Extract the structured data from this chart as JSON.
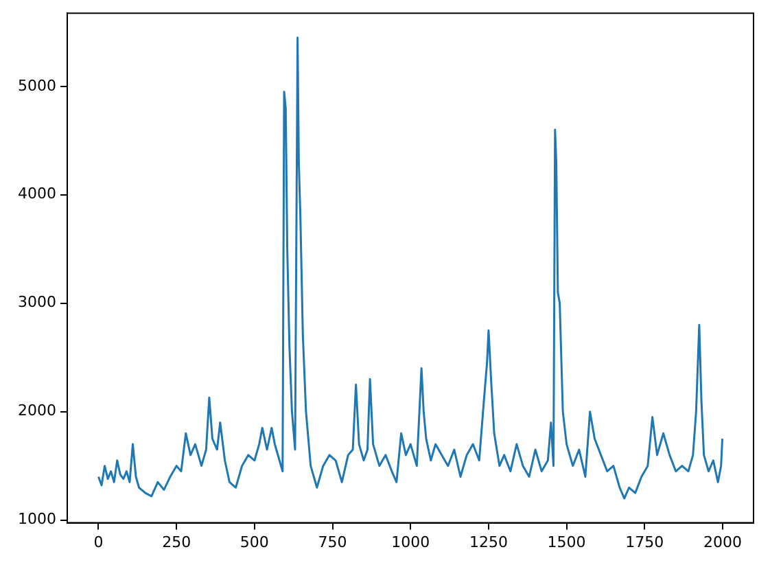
{
  "chart_data": {
    "type": "line",
    "xlim": [
      -100,
      2099
    ],
    "ylim": [
      975,
      5675
    ],
    "xticks": [
      0,
      250,
      500,
      750,
      1000,
      1250,
      1500,
      1750,
      2000
    ],
    "yticks": [
      1000,
      2000,
      3000,
      4000,
      5000
    ],
    "grid": false,
    "legend": false,
    "marker": "none",
    "line_style": "solid",
    "series": [
      {
        "color": "#1f77b4",
        "x": [
          0,
          10,
          20,
          30,
          40,
          50,
          60,
          70,
          80,
          90,
          100,
          110,
          120,
          130,
          150,
          170,
          190,
          210,
          230,
          250,
          265,
          280,
          295,
          310,
          330,
          345,
          355,
          365,
          380,
          390,
          405,
          420,
          440,
          460,
          480,
          500,
          515,
          525,
          540,
          555,
          565,
          580,
          590,
          595,
          600,
          605,
          612,
          620,
          630,
          638,
          642,
          647,
          655,
          665,
          680,
          700,
          720,
          740,
          760,
          780,
          800,
          815,
          825,
          835,
          850,
          862,
          870,
          880,
          900,
          920,
          940,
          955,
          970,
          985,
          1000,
          1020,
          1035,
          1042,
          1050,
          1065,
          1080,
          1100,
          1120,
          1140,
          1160,
          1180,
          1200,
          1220,
          1235,
          1245,
          1250,
          1258,
          1268,
          1285,
          1300,
          1320,
          1340,
          1360,
          1380,
          1400,
          1420,
          1440,
          1450,
          1458,
          1463,
          1467,
          1472,
          1478,
          1488,
          1500,
          1520,
          1540,
          1560,
          1575,
          1590,
          1610,
          1630,
          1650,
          1670,
          1685,
          1700,
          1720,
          1740,
          1760,
          1775,
          1790,
          1810,
          1830,
          1850,
          1870,
          1890,
          1905,
          1915,
          1925,
          1932,
          1940,
          1955,
          1970,
          1985,
          1995,
          1999
        ],
        "values": [
          1400,
          1320,
          1500,
          1380,
          1450,
          1350,
          1550,
          1420,
          1380,
          1450,
          1350,
          1700,
          1400,
          1300,
          1250,
          1220,
          1350,
          1280,
          1400,
          1500,
          1450,
          1800,
          1600,
          1700,
          1500,
          1650,
          2130,
          1750,
          1650,
          1900,
          1550,
          1350,
          1300,
          1500,
          1600,
          1550,
          1700,
          1850,
          1650,
          1850,
          1700,
          1550,
          1450,
          4950,
          4800,
          3500,
          2600,
          2000,
          1650,
          5450,
          4300,
          3800,
          2700,
          2000,
          1500,
          1300,
          1500,
          1600,
          1550,
          1350,
          1600,
          1650,
          2250,
          1700,
          1550,
          1650,
          2300,
          1700,
          1500,
          1600,
          1450,
          1350,
          1800,
          1600,
          1700,
          1500,
          2400,
          2000,
          1750,
          1550,
          1700,
          1600,
          1500,
          1650,
          1400,
          1600,
          1700,
          1550,
          2100,
          2450,
          2750,
          2300,
          1800,
          1500,
          1600,
          1450,
          1700,
          1500,
          1400,
          1650,
          1450,
          1550,
          1900,
          1500,
          4600,
          4300,
          3100,
          3000,
          2000,
          1700,
          1500,
          1650,
          1400,
          2000,
          1750,
          1600,
          1450,
          1500,
          1300,
          1200,
          1300,
          1250,
          1400,
          1500,
          1950,
          1600,
          1800,
          1600,
          1450,
          1500,
          1450,
          1600,
          2000,
          2800,
          2100,
          1600,
          1450,
          1550,
          1350,
          1500,
          1750
        ]
      }
    ]
  }
}
